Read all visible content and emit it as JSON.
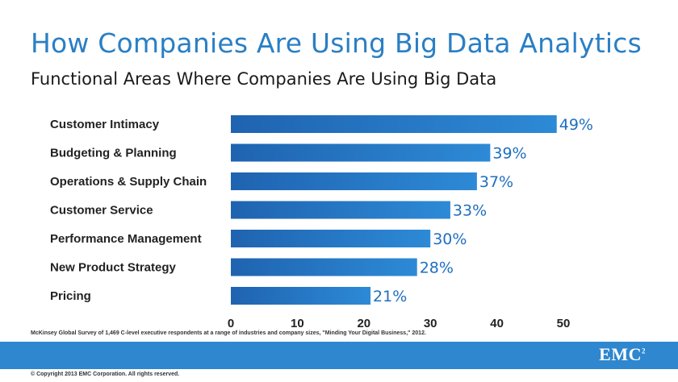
{
  "header": {
    "title": "How Companies Are Using Big Data Analytics",
    "subtitle": "Functional Areas Where Companies Are Using Big Data"
  },
  "chart_data": {
    "type": "bar",
    "orientation": "horizontal",
    "categories": [
      "Customer Intimacy",
      "Budgeting & Planning",
      "Operations & Supply Chain",
      "Customer Service",
      "Performance Management",
      "New Product Strategy",
      "Pricing"
    ],
    "values": [
      49,
      39,
      37,
      33,
      30,
      28,
      21
    ],
    "data_labels": [
      "49%",
      "39%",
      "37%",
      "33%",
      "30%",
      "28%",
      "21%"
    ],
    "xlim": [
      0,
      50
    ],
    "xticks": [
      0,
      10,
      20,
      30,
      40,
      50
    ],
    "grid": false,
    "legend": "none",
    "bar_color": "#2d8ad6",
    "bar_color_dark": "#1f63b0",
    "label_color": "#1f6fbf"
  },
  "source": "McKinsey Global Survey of 1,469 C-level executive respondents at a range of industries and company sizes, \"Minding Your Digital Business,\" 2012.",
  "footer": {
    "brand": "EMC",
    "brand_superscript": "2",
    "copyright": "© Copyright 2013 EMC Corporation. All rights reserved."
  },
  "colors": {
    "title": "#2a7fc4",
    "footer_band": "#2e87cf"
  }
}
